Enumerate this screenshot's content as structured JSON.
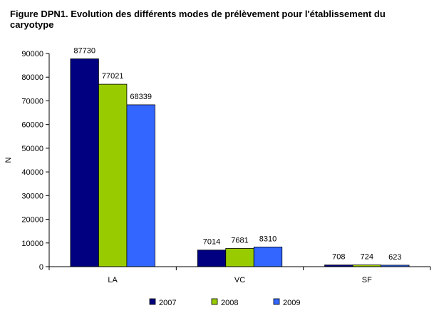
{
  "page": {
    "title": "Figure DPN1. Evolution des différents modes de prélèvement pour l'établissement du caryotype"
  },
  "chart_data": {
    "type": "bar",
    "title": "Figure DPN1. Evolution des différents modes de prélèvement pour l'établissement du caryotype",
    "xlabel": "",
    "ylabel": "N",
    "categories": [
      "LA",
      "VC",
      "SF"
    ],
    "series": [
      {
        "name": "2007",
        "color": "#000080",
        "values": [
          87730,
          7014,
          708
        ]
      },
      {
        "name": "2008",
        "color": "#99cc00",
        "values": [
          77021,
          7681,
          724
        ]
      },
      {
        "name": "2009",
        "color": "#3366ff",
        "values": [
          68339,
          8310,
          623
        ]
      }
    ],
    "ylim": [
      0,
      90000
    ],
    "yticks": [
      "0",
      "10000",
      "20000",
      "30000",
      "40000",
      "50000",
      "60000",
      "70000",
      "80000",
      "90000"
    ],
    "grid": false,
    "legend": "bottom"
  }
}
